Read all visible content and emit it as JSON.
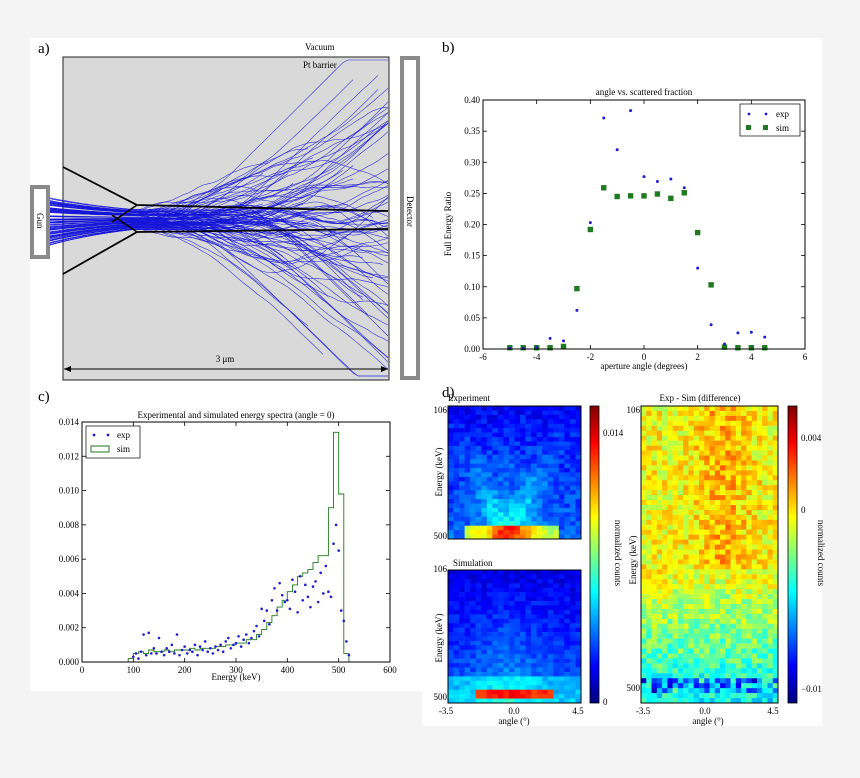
{
  "panels": {
    "a": {
      "label": "a)",
      "vacuum_label": "Vacuum",
      "barrier_label": "Pt barrier",
      "gun_label": "Gun",
      "detector_label": "Detector",
      "scale_label": "3 μm"
    },
    "b": {
      "label": "b)"
    },
    "c": {
      "label": "c)"
    },
    "d": {
      "label": "d)"
    }
  },
  "colors": {
    "trajectory": "#1414d8",
    "exp": "#1f1fd0",
    "sim": "#1e7a1e",
    "chamber": "#d9d9d9",
    "frame": "#888888"
  },
  "chart_data": [
    {
      "id": "b",
      "type": "scatter",
      "title": "angle vs. scattered fraction",
      "xlabel": "aperture angle (degrees)",
      "ylabel": "Full Energy Ratio",
      "xlim": [
        -6,
        6
      ],
      "ylim": [
        0,
        0.4
      ],
      "xticks": [
        -6,
        -4,
        -2,
        0,
        2,
        4,
        6
      ],
      "yticks": [
        0.0,
        0.05,
        0.1,
        0.15,
        0.2,
        0.25,
        0.3,
        0.35,
        0.4
      ],
      "legend_position": "top-right",
      "series": [
        {
          "name": "exp",
          "x": [
            -5,
            -4.5,
            -4,
            -3.5,
            -3,
            -2.5,
            -2,
            -1.5,
            -1,
            -0.5,
            0,
            0.5,
            1,
            1.5,
            2,
            2.5,
            3,
            3.5,
            4,
            4.5
          ],
          "y": [
            0.001,
            0.001,
            0.003,
            0.017,
            0.013,
            0.062,
            0.203,
            0.371,
            0.32,
            0.383,
            0.277,
            0.269,
            0.273,
            0.259,
            0.13,
            0.039,
            0.008,
            0.026,
            0.027,
            0.019
          ]
        },
        {
          "name": "sim",
          "x": [
            -5,
            -4.5,
            -4,
            -3.5,
            -3,
            -2.5,
            -2,
            -1.5,
            -1,
            -0.5,
            0,
            0.5,
            1,
            1.5,
            2,
            2.5,
            3,
            3.5,
            4,
            4.5
          ],
          "y": [
            0.002,
            0.002,
            0.002,
            0.002,
            0.004,
            0.097,
            0.192,
            0.259,
            0.245,
            0.246,
            0.246,
            0.249,
            0.242,
            0.251,
            0.187,
            0.103,
            0.003,
            0.002,
            0.002,
            0.002
          ]
        }
      ]
    },
    {
      "id": "c",
      "type": "line",
      "title": "Experimental and simulated energy spectra (angle = 0)",
      "xlabel": "Energy (keV)",
      "ylabel": "",
      "xlim": [
        0,
        600
      ],
      "ylim": [
        0,
        0.014
      ],
      "xticks": [
        0,
        100,
        200,
        300,
        400,
        500,
        600
      ],
      "yticks": [
        0.0,
        0.002,
        0.004,
        0.006,
        0.008,
        0.01,
        0.012,
        0.014
      ],
      "ytick_labels": [
        "0.000",
        "0.002",
        "0.004",
        "0.006",
        "0.008",
        "0.010",
        "0.012",
        "0.014"
      ],
      "legend_position": "top-left",
      "series": [
        {
          "name": "exp",
          "x": [
            100,
            105,
            110,
            115,
            120,
            125,
            130,
            135,
            140,
            145,
            150,
            155,
            160,
            165,
            170,
            175,
            180,
            185,
            190,
            195,
            200,
            205,
            210,
            215,
            220,
            225,
            230,
            235,
            240,
            245,
            250,
            255,
            260,
            265,
            270,
            275,
            280,
            285,
            290,
            295,
            300,
            305,
            310,
            315,
            320,
            325,
            330,
            335,
            340,
            345,
            350,
            355,
            360,
            365,
            370,
            375,
            380,
            385,
            390,
            395,
            400,
            405,
            410,
            415,
            420,
            425,
            430,
            435,
            440,
            445,
            450,
            455,
            460,
            465,
            470,
            475,
            480,
            485,
            490,
            495,
            500,
            505,
            510,
            515,
            520
          ],
          "y": [
            0.0003,
            0.0005,
            0.0002,
            0.0006,
            0.0016,
            0.0004,
            0.0017,
            0.0005,
            0.0008,
            0.0005,
            0.0014,
            0.0006,
            0.0004,
            0.0008,
            0.0006,
            0.001,
            0.0005,
            0.0016,
            0.0004,
            0.0007,
            0.0009,
            0.0005,
            0.0007,
            0.0006,
            0.001,
            0.0004,
            0.0009,
            0.0007,
            0.0012,
            0.0006,
            0.0008,
            0.0005,
            0.0009,
            0.0007,
            0.001,
            0.0006,
            0.0012,
            0.0014,
            0.0008,
            0.001,
            0.0011,
            0.0015,
            0.0009,
            0.0013,
            0.0016,
            0.0011,
            0.0014,
            0.0018,
            0.0021,
            0.0015,
            0.0031,
            0.0024,
            0.003,
            0.0022,
            0.0036,
            0.0043,
            0.003,
            0.0046,
            0.0039,
            0.0035,
            0.0036,
            0.0031,
            0.0048,
            0.0041,
            0.0029,
            0.005,
            0.0036,
            0.0045,
            0.0038,
            0.0032,
            0.0044,
            0.0047,
            0.0035,
            0.0052,
            0.004,
            0.0056,
            0.0041,
            0.0038,
            0.0069,
            0.008,
            0.0065,
            0.003,
            0.0024,
            0.0012,
            0.0004
          ]
        },
        {
          "name": "sim",
          "x": [
            85,
            95,
            105,
            115,
            125,
            135,
            145,
            155,
            165,
            175,
            185,
            195,
            205,
            215,
            225,
            235,
            245,
            255,
            265,
            275,
            285,
            295,
            305,
            315,
            325,
            335,
            345,
            355,
            365,
            375,
            385,
            395,
            405,
            415,
            425,
            435,
            445,
            455,
            465,
            475,
            485,
            495,
            505,
            515,
            525
          ],
          "y": [
            0.0,
            0.0002,
            0.0005,
            0.0006,
            0.0005,
            0.0007,
            0.0006,
            0.0006,
            0.0007,
            0.0006,
            0.0007,
            0.0007,
            0.0007,
            0.0008,
            0.0007,
            0.0008,
            0.0008,
            0.0008,
            0.0009,
            0.0009,
            0.001,
            0.001,
            0.0011,
            0.0011,
            0.0013,
            0.0013,
            0.0016,
            0.0019,
            0.0023,
            0.0027,
            0.0032,
            0.0036,
            0.0041,
            0.0045,
            0.005,
            0.0052,
            0.0054,
            0.0058,
            0.0062,
            0.0062,
            0.009,
            0.0134,
            0.0098,
            0.0005,
            0.0
          ]
        }
      ]
    },
    {
      "id": "d-experiment",
      "type": "heatmap",
      "title": "Experiment",
      "xlabel": "angle (°)",
      "ylabel": "Energy (keV)",
      "xticks": [
        "-3.5",
        "0.0",
        "4.5"
      ],
      "yticks": [
        "106",
        "500"
      ],
      "colorbar_label": "normalized counts",
      "colorbar_ticks": [
        "0.014",
        "0"
      ],
      "vlim": [
        0,
        0.016
      ]
    },
    {
      "id": "d-simulation",
      "type": "heatmap",
      "title": "Simulation",
      "xlabel": "angle (°)",
      "ylabel": "Energy (keV)",
      "xticks": [
        "-3.5",
        "0.0",
        "4.5"
      ],
      "yticks": [
        "106",
        "500"
      ],
      "colorbar_label": "normalized counts",
      "colorbar_ticks": [
        "0.014",
        "0"
      ],
      "vlim": [
        0,
        0.016
      ]
    },
    {
      "id": "d-difference",
      "type": "heatmap",
      "title": "Exp - Sim (difference)",
      "xlabel": "angle (°)",
      "ylabel": "Energy (keV)",
      "xticks": [
        "-3.5",
        "0.0",
        "4.5"
      ],
      "yticks": [
        "106",
        "500"
      ],
      "colorbar_label": "normalized counts",
      "colorbar_ticks": [
        "0.004",
        "0",
        "−0.01"
      ],
      "vlim": [
        -0.012,
        0.006
      ]
    }
  ]
}
